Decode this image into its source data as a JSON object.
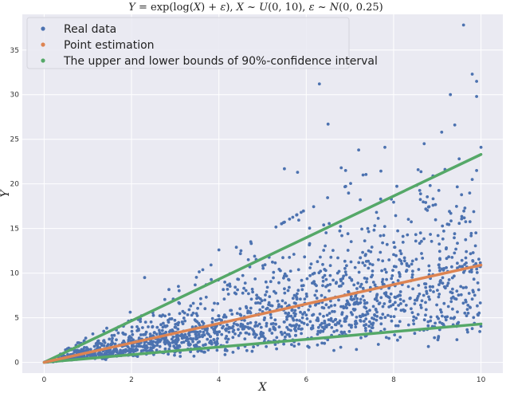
{
  "chart_data": {
    "type": "scatter",
    "title": "Y = exp(log(X) + ε), X ~ U(0, 10), ε ~ N(0, 0.25)",
    "xlabel": "X",
    "ylabel": "Y",
    "xlim": [
      -0.5,
      10.5
    ],
    "ylim": [
      -1.2,
      39
    ],
    "xticks": [
      0,
      2,
      4,
      6,
      8,
      10
    ],
    "yticks": [
      0,
      5,
      10,
      15,
      20,
      25,
      30,
      35
    ],
    "grid": true,
    "legend_position": "top-left",
    "background_color": "#eaeaf2",
    "series": [
      {
        "name": "Real data",
        "kind": "scatter",
        "color": "#4c72b0",
        "n_points": 1800,
        "x_distribution": "uniform(0, 10)",
        "y_model": "x * exp(N(0, 0.5))",
        "outliers": [
          {
            "x": 9.6,
            "y": 37.8
          },
          {
            "x": 9.8,
            "y": 32.3
          },
          {
            "x": 9.9,
            "y": 31.5
          },
          {
            "x": 9.3,
            "y": 30.0
          },
          {
            "x": 6.3,
            "y": 31.2
          },
          {
            "x": 9.9,
            "y": 29.8
          },
          {
            "x": 9.4,
            "y": 26.6
          },
          {
            "x": 6.5,
            "y": 26.7
          },
          {
            "x": 9.1,
            "y": 25.8
          },
          {
            "x": 8.7,
            "y": 24.5
          },
          {
            "x": 7.2,
            "y": 23.8
          },
          {
            "x": 7.8,
            "y": 24.1
          },
          {
            "x": 10.0,
            "y": 24.1
          },
          {
            "x": 5.5,
            "y": 21.7
          },
          {
            "x": 6.8,
            "y": 21.8
          },
          {
            "x": 6.9,
            "y": 21.5
          },
          {
            "x": 7.3,
            "y": 21.0
          },
          {
            "x": 5.8,
            "y": 21.3
          },
          {
            "x": 9.9,
            "y": 21.5
          },
          {
            "x": 9.8,
            "y": 20.5
          },
          {
            "x": 4.4,
            "y": 12.9
          },
          {
            "x": 4.0,
            "y": 12.6
          },
          {
            "x": 2.3,
            "y": 9.5
          },
          {
            "x": 6.4,
            "y": 15.4
          },
          {
            "x": 9.5,
            "y": 22.8
          },
          {
            "x": 8.9,
            "y": 20.9
          }
        ]
      },
      {
        "name": "Point estimation",
        "kind": "line",
        "color": "#dd8452",
        "x": [
          0,
          10
        ],
        "y": [
          0,
          10.9
        ]
      },
      {
        "name": "The upper and lower bounds of 90%-confidence interval",
        "kind": "line-pair",
        "color": "#55a868",
        "upper": {
          "x": [
            0,
            10
          ],
          "y": [
            0,
            23.3
          ]
        },
        "lower": {
          "x": [
            0,
            10
          ],
          "y": [
            0,
            4.3
          ]
        }
      }
    ]
  }
}
